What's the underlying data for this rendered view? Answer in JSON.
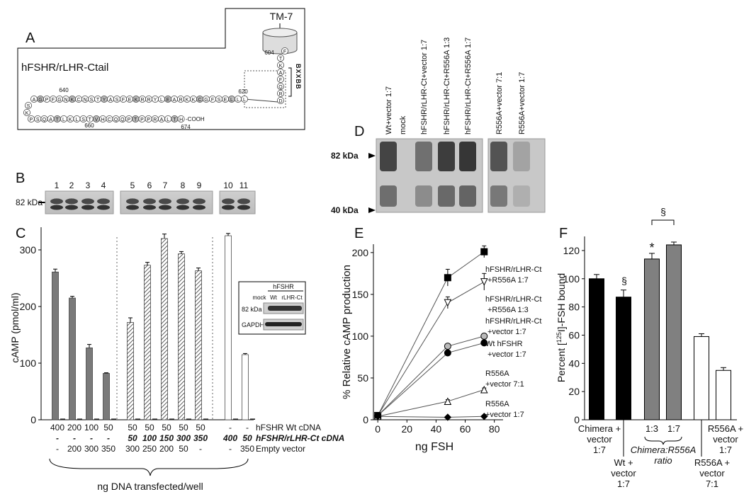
{
  "panel_a": {
    "letter": "A",
    "title": "hFSHR/rLHR-Ctail",
    "tm": "TM-7",
    "motif": "BXXBB",
    "cooh": "-COOH",
    "top_row": [
      "A",
      "G",
      "P",
      "F",
      "G",
      "N",
      "K",
      "C",
      "N",
      "S",
      "T",
      "Y",
      "A",
      "S",
      "F",
      "E",
      "K",
      "R",
      "R",
      "Y",
      "L",
      "E",
      "A",
      "R",
      "K",
      "K",
      "C",
      "G",
      "F",
      "S",
      "E",
      "L",
      "L",
      "L"
    ],
    "turn": [
      "S",
      "K"
    ],
    "bottom_row": [
      "P",
      "S",
      "Q",
      "A",
      "T",
      "L",
      "K",
      "L",
      "S",
      "T",
      "V",
      "H",
      "C",
      "Q",
      "Q",
      "P",
      "T",
      "P",
      "P",
      "R",
      "A",
      "L",
      "T",
      "H"
    ],
    "column": [
      "F",
      "T",
      "K",
      "A",
      "F",
      "Q",
      "R",
      "D"
    ],
    "numbers": [
      "640",
      "620",
      "660",
      "674",
      "604"
    ]
  },
  "panel_b": {
    "letter": "B",
    "marker": "82 kDa",
    "lanes": [
      "1",
      "2",
      "3",
      "4",
      "5",
      "6",
      "7",
      "8",
      "9",
      "10",
      "11"
    ]
  },
  "panel_d": {
    "letter": "D",
    "markers": [
      "82 kDa",
      "40 kDa"
    ],
    "lanes": [
      "Wt+vector 1:7",
      "mock",
      "hFSHR/rLHR-Ct+vector 1:7",
      "hFSHR/rLHR-Ct+R556A 1:3",
      "hFSHR/rLHR-Ct+R556A 1:7",
      "R556A+vector 7:1",
      "R556A+vector 1:7"
    ]
  },
  "chart_data": [
    {
      "type": "bar",
      "letter": "C",
      "ylabel": "cAMP (pmol/ml)",
      "ylim": [
        0,
        340
      ],
      "yticks": [
        0,
        100,
        200,
        300
      ],
      "series": [
        {
          "color": "#7a7a7a",
          "hatch": false,
          "values": [
            261,
            215,
            127,
            82
          ],
          "errors": [
            5,
            3,
            6,
            1
          ],
          "basal": [
            2,
            2,
            2,
            2
          ]
        },
        {
          "color": "#ffffff",
          "hatch": true,
          "values": [
            172,
            273,
            320,
            293,
            263
          ],
          "errors": [
            8,
            5,
            8,
            4,
            5
          ],
          "basal": [
            2,
            2,
            2,
            2,
            2
          ]
        },
        {
          "color": "#ffffff",
          "hatch": false,
          "values": [
            325,
            115
          ],
          "errors": [
            4,
            2
          ],
          "basal": [
            2,
            2
          ]
        }
      ],
      "table": {
        "rows": [
          {
            "label": "hFSHR Wt cDNA",
            "cells": [
              "400",
              "200",
              "100",
              "50",
              "50",
              "50",
              "50",
              "50",
              "50",
              "-",
              "-"
            ]
          },
          {
            "label": "hFSHR/rLHR-Ct cDNA",
            "cells": [
              "-",
              "-",
              "-",
              "-",
              "50",
              "100",
              "150",
              "300",
              "350",
              "400",
              "50"
            ]
          },
          {
            "label": "Empty vector",
            "cells": [
              "-",
              "200",
              "300",
              "350",
              "300",
              "250",
              "200",
              "50",
              "-",
              "-",
              "350"
            ]
          }
        ]
      },
      "caption": "ng DNA transfected/well",
      "inset": {
        "title": "hFSHR",
        "lanes": [
          "mock",
          "Wt",
          "rLHR-Ct"
        ],
        "blots": [
          "82 kDa",
          "GAPDH"
        ]
      }
    },
    {
      "type": "line",
      "letter": "E",
      "xlabel": "ng FSH",
      "ylabel": "% Relative cAMP production",
      "x": [
        0,
        48,
        73
      ],
      "xlim": [
        -3,
        86
      ],
      "xticks": [
        0,
        20,
        40,
        60,
        80
      ],
      "ylim": [
        0,
        210
      ],
      "yticks": [
        0,
        50,
        100,
        150,
        200
      ],
      "series": [
        {
          "name": [
            "hFSHR/rLHR-Ct",
            "+R556A 1:7"
          ],
          "marker": "square",
          "color": "#000000",
          "values": [
            5,
            170,
            201
          ],
          "errors": [
            0,
            10,
            7
          ]
        },
        {
          "name": [
            "hFSHR/rLHR-Ct",
            "+R556A 1:3"
          ],
          "marker": "triangle-down",
          "color": "#ffffff",
          "values": [
            5,
            140,
            165
          ],
          "errors": [
            0,
            7,
            10
          ]
        },
        {
          "name": [
            "hFSHR/rLHR-Ct",
            "+vector 1:7"
          ],
          "marker": "circle",
          "color": "#bbbbbb",
          "values": [
            5,
            88,
            100
          ],
          "errors": [
            0,
            2,
            2
          ]
        },
        {
          "name": [
            "Wt hFSHR",
            "+vector 1:7"
          ],
          "marker": "circle",
          "color": "#000000",
          "values": [
            5,
            80,
            92
          ],
          "errors": [
            0,
            2,
            2
          ]
        },
        {
          "name": [
            "R556A",
            "+vector 7:1"
          ],
          "marker": "triangle-up",
          "color": "#ffffff",
          "values": [
            4,
            22,
            36
          ],
          "errors": [
            0,
            2,
            2
          ]
        },
        {
          "name": [
            "R556A",
            "+vector 1:7"
          ],
          "marker": "diamond",
          "color": "#000000",
          "values": [
            4,
            3,
            4
          ],
          "errors": [
            0,
            1,
            1
          ]
        }
      ]
    },
    {
      "type": "bar",
      "letter": "F",
      "ylabel": [
        "Percent [",
        "125",
        "I]-FSH bound"
      ],
      "ylim": [
        0,
        130
      ],
      "yticks": [
        0,
        20,
        40,
        60,
        80,
        100,
        120
      ],
      "categories": [
        [
          "Chimera +",
          "vector",
          "1:7"
        ],
        [
          "Wt +",
          "vector",
          "1:7"
        ],
        [
          "1:3"
        ],
        [
          "1:7"
        ],
        [
          "R556A +",
          "vector",
          "7:1"
        ],
        [
          "R556A +",
          "vector",
          "1:7"
        ]
      ],
      "values": [
        100,
        87,
        114,
        124,
        59,
        35
      ],
      "errors": [
        3,
        5,
        4,
        2,
        2,
        2
      ],
      "colors": [
        "#000000",
        "#000000",
        "#808080",
        "#808080",
        "#ffffff",
        "#ffffff"
      ],
      "group_label": [
        "Chimera:R556A",
        "ratio"
      ],
      "annotations": [
        "§",
        "*",
        "§"
      ]
    }
  ]
}
